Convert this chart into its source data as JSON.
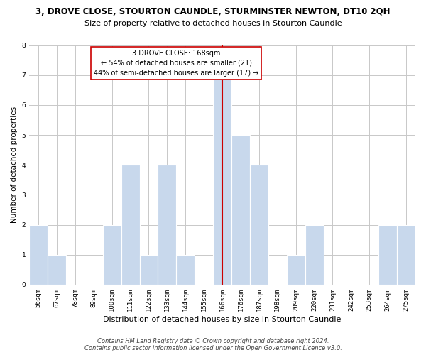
{
  "title": "3, DROVE CLOSE, STOURTON CAUNDLE, STURMINSTER NEWTON, DT10 2QH",
  "subtitle": "Size of property relative to detached houses in Stourton Caundle",
  "xlabel": "Distribution of detached houses by size in Stourton Caundle",
  "ylabel": "Number of detached properties",
  "bin_labels": [
    "56sqm",
    "67sqm",
    "78sqm",
    "89sqm",
    "100sqm",
    "111sqm",
    "122sqm",
    "133sqm",
    "144sqm",
    "155sqm",
    "166sqm",
    "176sqm",
    "187sqm",
    "198sqm",
    "209sqm",
    "220sqm",
    "231sqm",
    "242sqm",
    "253sqm",
    "264sqm",
    "275sqm"
  ],
  "bin_values": [
    2,
    1,
    0,
    0,
    2,
    4,
    1,
    4,
    1,
    0,
    7,
    5,
    4,
    0,
    1,
    2,
    0,
    0,
    0,
    2,
    2
  ],
  "bar_color": "#c8d8ec",
  "bar_edge_color": "#ffffff",
  "highlight_bin_index": 10,
  "highlight_line_color": "#cc0000",
  "annotation_title": "3 DROVE CLOSE: 168sqm",
  "annotation_line1": "← 54% of detached houses are smaller (21)",
  "annotation_line2": "44% of semi-detached houses are larger (17) →",
  "annotation_box_color": "#ffffff",
  "annotation_box_edge": "#cc0000",
  "ylim": [
    0,
    8
  ],
  "yticks": [
    0,
    1,
    2,
    3,
    4,
    5,
    6,
    7,
    8
  ],
  "background_color": "#ffffff",
  "grid_color": "#c8c8c8",
  "footer_line1": "Contains HM Land Registry data © Crown copyright and database right 2024.",
  "footer_line2": "Contains public sector information licensed under the Open Government Licence v3.0.",
  "title_fontsize": 8.5,
  "subtitle_fontsize": 8.0,
  "xlabel_fontsize": 8.0,
  "ylabel_fontsize": 7.5,
  "tick_fontsize": 6.5,
  "annotation_fontsize": 7.0,
  "footer_fontsize": 6.0
}
